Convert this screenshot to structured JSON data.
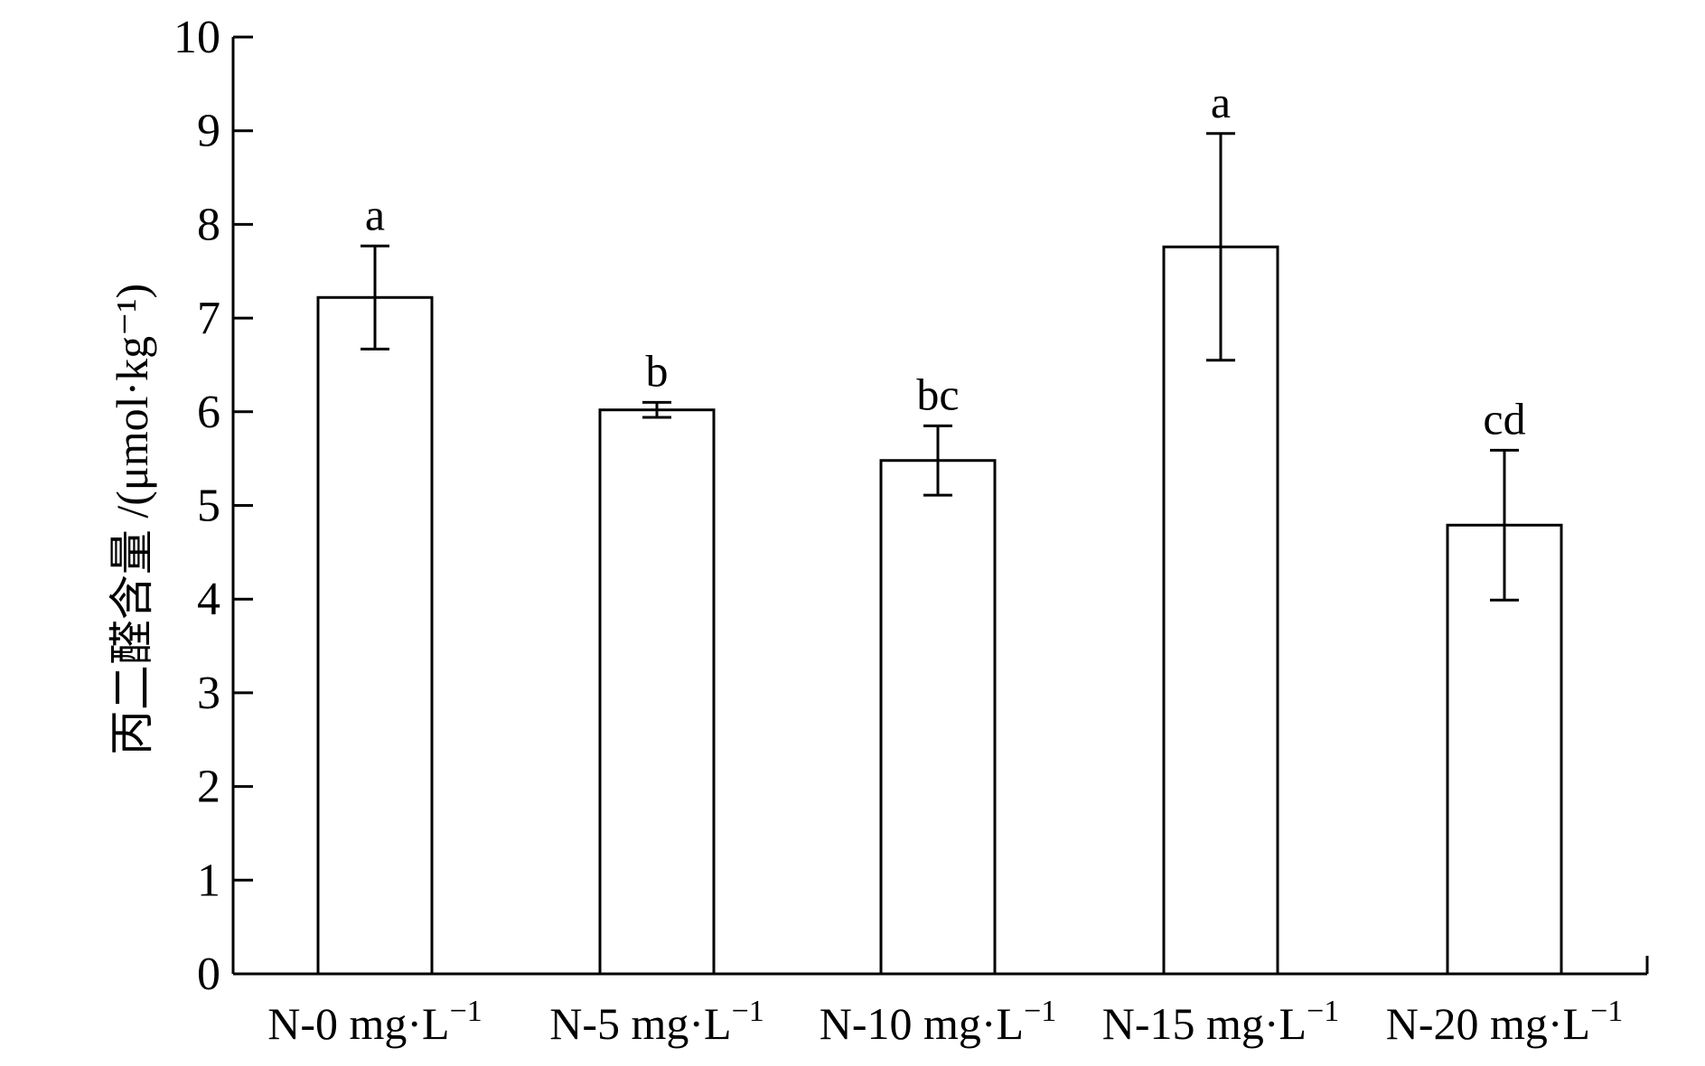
{
  "chart_data": {
    "type": "bar",
    "ylabel": "丙二醛含量 /(μmol·kg⁻¹)",
    "ylim": [
      0,
      10
    ],
    "yticks": [
      "0",
      "1",
      "2",
      "3",
      "4",
      "5",
      "6",
      "7",
      "8",
      "9",
      "10"
    ],
    "categories": [
      {
        "prefix": "N-0 mg·L",
        "sup": "−1"
      },
      {
        "prefix": "N-5 mg·L",
        "sup": "−1"
      },
      {
        "prefix": "N-10 mg·L",
        "sup": "−1"
      },
      {
        "prefix": "N-15 mg·L",
        "sup": "−1"
      },
      {
        "prefix": "N-20 mg·L",
        "sup": "−1"
      }
    ],
    "values": [
      7.22,
      6.02,
      5.48,
      7.76,
      4.79
    ],
    "errors": [
      0.55,
      0.08,
      0.37,
      1.21,
      0.8
    ],
    "significance": [
      "a",
      "b",
      "bc",
      "a",
      "cd"
    ],
    "bar_fill": "#ffffff",
    "bar_stroke": "#000000",
    "grid": false,
    "legend": "none"
  }
}
